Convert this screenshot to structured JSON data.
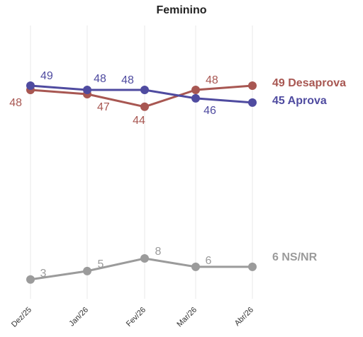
{
  "chart_data": {
    "type": "line",
    "title": "Feminino",
    "categories": [
      "Dez/25",
      "Jan/26",
      "Fev/26",
      "Mar/26",
      "Abr/26"
    ],
    "xlabel": "",
    "ylabel": "",
    "ylim": [
      0,
      55
    ],
    "grid": "vertical",
    "legend": "right-end-labels",
    "series": [
      {
        "name": "Desaprova",
        "values": [
          48,
          47,
          44,
          48,
          49
        ],
        "color": "#a85752",
        "end_label": "49 Desaprova"
      },
      {
        "name": "Aprova",
        "values": [
          49,
          48,
          48,
          46,
          45
        ],
        "color": "#4f4ba0",
        "end_label": "45 Aprova"
      },
      {
        "name": "NS/NR",
        "values": [
          3,
          5,
          8,
          6,
          6
        ],
        "color": "#9b9b9b",
        "end_label": "6 NS/NR"
      }
    ]
  }
}
